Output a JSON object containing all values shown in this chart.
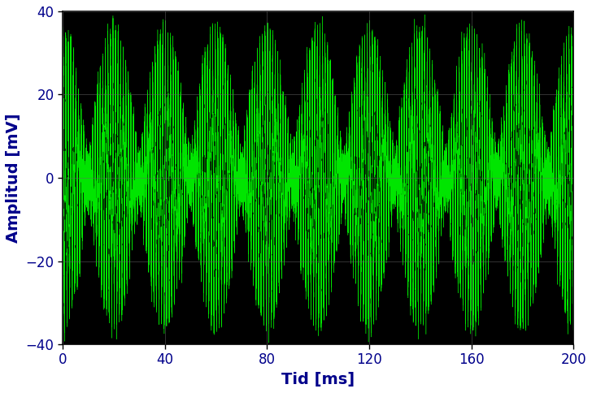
{
  "bg_color": "#ffffff",
  "plot_bg_color": "#000000",
  "signal_color": "#00ff00",
  "grid_color": "#666666",
  "tick_color": "#000000",
  "label_color": "#00008B",
  "axis_color": "#000000",
  "xlabel": "Tid [ms]",
  "ylabel": "Amplitud [mV]",
  "xlim": [
    0,
    200
  ],
  "ylim": [
    -40,
    40
  ],
  "xticks": [
    0,
    40,
    80,
    120,
    160,
    200
  ],
  "yticks": [
    -40,
    -20,
    0,
    20,
    40
  ],
  "num_points": 100000,
  "line_width": 0.3,
  "line_alpha": 0.9,
  "xlabel_fontsize": 14,
  "ylabel_fontsize": 14,
  "tick_fontsize": 12,
  "grid_alpha": 0.5,
  "grid_linewidth": 0.7,
  "figsize": [
    7.28,
    4.84
  ],
  "dpi": 100,
  "carrier_freq_per_ms": 1.0,
  "envelope_freq_per_ms": 0.05,
  "base_amp": 18,
  "mod_amp": 14,
  "noise_amp": 2.5,
  "hf_noise_amp": 1.2
}
